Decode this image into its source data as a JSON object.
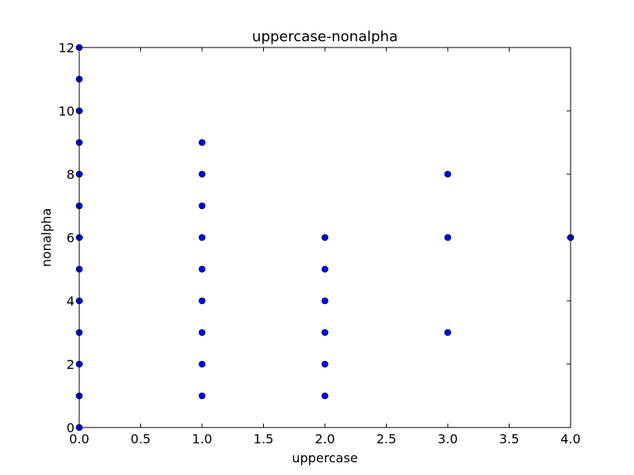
{
  "chart_data": {
    "type": "scatter",
    "title": "uppercase-nonalpha",
    "xlabel": "uppercase",
    "ylabel": "nonalpha",
    "xlim": [
      0,
      4
    ],
    "ylim": [
      0,
      12
    ],
    "xticks": [
      "0.0",
      "0.5",
      "1.0",
      "1.5",
      "2.0",
      "2.5",
      "3.0",
      "3.5",
      "4.0"
    ],
    "yticks": [
      "0",
      "2",
      "4",
      "6",
      "8",
      "10",
      "12"
    ],
    "grid": false,
    "marker_color": "#0000ff",
    "points": [
      {
        "x": 0,
        "y": 0
      },
      {
        "x": 0,
        "y": 1
      },
      {
        "x": 0,
        "y": 2
      },
      {
        "x": 0,
        "y": 3
      },
      {
        "x": 0,
        "y": 4
      },
      {
        "x": 0,
        "y": 5
      },
      {
        "x": 0,
        "y": 6
      },
      {
        "x": 0,
        "y": 7
      },
      {
        "x": 0,
        "y": 8
      },
      {
        "x": 0,
        "y": 9
      },
      {
        "x": 0,
        "y": 10
      },
      {
        "x": 0,
        "y": 11
      },
      {
        "x": 0,
        "y": 12
      },
      {
        "x": 1,
        "y": 1
      },
      {
        "x": 1,
        "y": 2
      },
      {
        "x": 1,
        "y": 3
      },
      {
        "x": 1,
        "y": 4
      },
      {
        "x": 1,
        "y": 5
      },
      {
        "x": 1,
        "y": 6
      },
      {
        "x": 1,
        "y": 7
      },
      {
        "x": 1,
        "y": 8
      },
      {
        "x": 1,
        "y": 9
      },
      {
        "x": 2,
        "y": 1
      },
      {
        "x": 2,
        "y": 2
      },
      {
        "x": 2,
        "y": 3
      },
      {
        "x": 2,
        "y": 4
      },
      {
        "x": 2,
        "y": 5
      },
      {
        "x": 2,
        "y": 6
      },
      {
        "x": 3,
        "y": 3
      },
      {
        "x": 3,
        "y": 6
      },
      {
        "x": 3,
        "y": 8
      },
      {
        "x": 4,
        "y": 6
      }
    ]
  }
}
